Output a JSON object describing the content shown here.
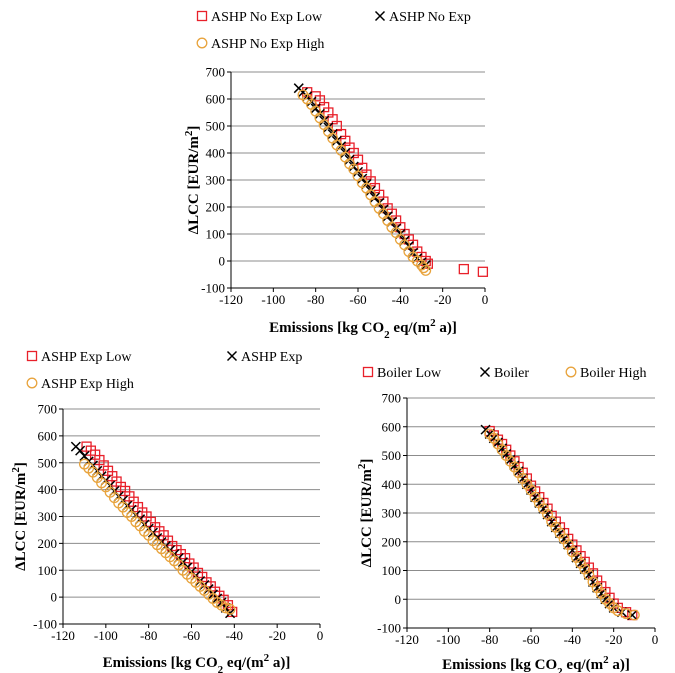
{
  "chart_data": [
    {
      "type": "scatter",
      "xlim": [
        -120,
        0
      ],
      "ylim": [
        -100,
        700
      ],
      "x_ticks": [
        "-120",
        "-100",
        "-80",
        "-60",
        "-40",
        "-20",
        "0"
      ],
      "y_ticks": [
        "-100",
        "0",
        "100",
        "200",
        "300",
        "400",
        "500",
        "600",
        "700"
      ],
      "xlabel_parts": [
        "Emissions [kg CO",
        "2",
        " eq/(m",
        "2",
        " a)]"
      ],
      "ylabel_parts": [
        "ΔLCC [EUR/m",
        "2",
        "]"
      ],
      "grid": "horizontal",
      "legend_position": "top",
      "series": [
        {
          "name": "ASHP No Exp Low",
          "marker": "square",
          "color": "#e8202a",
          "x": [
            -84,
            -80,
            -78,
            -76,
            -74,
            -72,
            -70,
            -68,
            -66,
            -64,
            -62,
            -60,
            -58,
            -56,
            -54,
            -52,
            -50,
            -48,
            -46,
            -44,
            -42,
            -40,
            -38,
            -36,
            -34,
            -32,
            -30,
            -28,
            -27,
            -10,
            -1
          ],
          "y": [
            625,
            610,
            595,
            570,
            550,
            525,
            500,
            470,
            445,
            420,
            400,
            375,
            345,
            320,
            295,
            270,
            245,
            220,
            195,
            175,
            150,
            125,
            100,
            80,
            60,
            35,
            15,
            0,
            -10,
            -30,
            -40
          ]
        },
        {
          "name": "ASHP No Exp",
          "marker": "x",
          "color": "#000000",
          "x": [
            -88,
            -86,
            -84,
            -82,
            -80,
            -78,
            -76,
            -74,
            -72,
            -70,
            -68,
            -66,
            -64,
            -62,
            -60,
            -58,
            -56,
            -54,
            -52,
            -50,
            -48,
            -46,
            -44,
            -42,
            -40,
            -38,
            -36,
            -34,
            -32,
            -30,
            -28
          ],
          "y": [
            640,
            625,
            610,
            590,
            565,
            545,
            520,
            495,
            470,
            445,
            425,
            400,
            375,
            350,
            330,
            305,
            285,
            260,
            235,
            215,
            190,
            165,
            145,
            120,
            100,
            75,
            55,
            30,
            10,
            -5,
            -15
          ]
        },
        {
          "name": "ASHP No Exp High",
          "marker": "circle",
          "color": "#e8a33c",
          "x": [
            -86,
            -84,
            -82,
            -80,
            -78,
            -76,
            -74,
            -72,
            -70,
            -68,
            -66,
            -64,
            -62,
            -60,
            -58,
            -56,
            -54,
            -52,
            -50,
            -48,
            -46,
            -44,
            -42,
            -40,
            -38,
            -36,
            -34,
            -32,
            -30,
            -29,
            -28
          ],
          "y": [
            615,
            600,
            580,
            555,
            530,
            505,
            480,
            455,
            430,
            410,
            385,
            360,
            340,
            315,
            290,
            270,
            245,
            220,
            195,
            175,
            150,
            125,
            105,
            80,
            60,
            35,
            15,
            0,
            -15,
            -25,
            -35
          ]
        }
      ]
    },
    {
      "type": "scatter",
      "xlim": [
        -120,
        0
      ],
      "ylim": [
        -100,
        700
      ],
      "x_ticks": [
        "-120",
        "-100",
        "-80",
        "-60",
        "-40",
        "-20",
        "0"
      ],
      "y_ticks": [
        "-100",
        "0",
        "100",
        "200",
        "300",
        "400",
        "500",
        "600",
        "700"
      ],
      "xlabel_parts": [
        "Emissions [kg CO",
        "2",
        " eq/(m",
        "2",
        " a)]"
      ],
      "ylabel_parts": [
        "ΔLCC [EUR/m",
        "2",
        "]"
      ],
      "grid": "horizontal",
      "legend_position": "top",
      "series": [
        {
          "name": "ASHP Exp Low",
          "marker": "square",
          "color": "#e8202a",
          "x": [
            -109,
            -107,
            -105,
            -103,
            -101,
            -99,
            -97,
            -95,
            -93,
            -91,
            -89,
            -87,
            -85,
            -83,
            -81,
            -79,
            -77,
            -75,
            -73,
            -71,
            -69,
            -67,
            -65,
            -63,
            -61,
            -59,
            -57,
            -55,
            -53,
            -51,
            -49,
            -47,
            -45,
            -43,
            -41
          ],
          "y": [
            560,
            545,
            530,
            510,
            490,
            470,
            450,
            430,
            410,
            395,
            375,
            355,
            335,
            315,
            300,
            280,
            260,
            245,
            230,
            210,
            190,
            175,
            160,
            145,
            125,
            110,
            90,
            75,
            55,
            40,
            20,
            5,
            -10,
            -30,
            -55
          ]
        },
        {
          "name": "ASHP Exp",
          "marker": "x",
          "color": "#000000",
          "x": [
            -114,
            -112,
            -110,
            -108,
            -106,
            -104,
            -102,
            -100,
            -98,
            -96,
            -94,
            -92,
            -90,
            -88,
            -86,
            -84,
            -82,
            -80,
            -78,
            -76,
            -74,
            -72,
            -70,
            -68,
            -66,
            -64,
            -62,
            -60,
            -58,
            -56,
            -54,
            -52,
            -50,
            -48,
            -46,
            -44,
            -42
          ],
          "y": [
            560,
            545,
            525,
            505,
            490,
            470,
            450,
            435,
            415,
            395,
            375,
            360,
            340,
            325,
            305,
            290,
            270,
            255,
            240,
            220,
            205,
            190,
            175,
            160,
            145,
            130,
            110,
            95,
            80,
            60,
            45,
            30,
            10,
            -5,
            -20,
            -40,
            -60
          ]
        },
        {
          "name": "ASHP Exp High",
          "marker": "circle",
          "color": "#e8a33c",
          "x": [
            -110,
            -108,
            -106,
            -104,
            -102,
            -100,
            -98,
            -96,
            -94,
            -92,
            -90,
            -88,
            -86,
            -84,
            -82,
            -80,
            -78,
            -76,
            -74,
            -72,
            -70,
            -68,
            -66,
            -64,
            -62,
            -60,
            -58,
            -56,
            -54,
            -52,
            -50,
            -48,
            -46,
            -44,
            -42
          ],
          "y": [
            495,
            480,
            465,
            445,
            425,
            410,
            390,
            370,
            350,
            335,
            315,
            300,
            280,
            265,
            245,
            230,
            210,
            195,
            180,
            165,
            150,
            135,
            120,
            100,
            85,
            70,
            55,
            40,
            25,
            10,
            -5,
            -20,
            -30,
            -40,
            -45
          ]
        }
      ]
    },
    {
      "type": "scatter",
      "xlim": [
        -120,
        0
      ],
      "ylim": [
        -100,
        700
      ],
      "x_ticks": [
        "-120",
        "-100",
        "-80",
        "-60",
        "-40",
        "-20",
        "0"
      ],
      "y_ticks": [
        "-100",
        "0",
        "100",
        "200",
        "300",
        "400",
        "500",
        "600",
        "700"
      ],
      "xlabel_parts": [
        "Emissions [kg CO",
        "2",
        " eq/(m",
        "2",
        " a)]"
      ],
      "ylabel_parts": [
        "ΔLCC [EUR/m",
        "2",
        "]"
      ],
      "grid": "horizontal",
      "legend_position": "top",
      "series": [
        {
          "name": "Boiler Low",
          "marker": "square",
          "color": "#e8202a",
          "x": [
            -80,
            -78,
            -76,
            -74,
            -72,
            -70,
            -68,
            -66,
            -64,
            -62,
            -60,
            -58,
            -56,
            -54,
            -52,
            -50,
            -48,
            -46,
            -44,
            -42,
            -40,
            -38,
            -36,
            -34,
            -32,
            -30,
            -28,
            -26,
            -24,
            -22,
            -20,
            -18,
            -14,
            -11
          ],
          "y": [
            585,
            570,
            555,
            540,
            520,
            500,
            480,
            460,
            440,
            420,
            395,
            375,
            355,
            335,
            315,
            290,
            270,
            250,
            230,
            210,
            190,
            170,
            150,
            130,
            110,
            90,
            65,
            45,
            25,
            5,
            -15,
            -30,
            -45,
            -55
          ]
        },
        {
          "name": "Boiler",
          "marker": "x",
          "color": "#000000",
          "x": [
            -82,
            -80,
            -78,
            -76,
            -74,
            -72,
            -70,
            -68,
            -66,
            -64,
            -62,
            -60,
            -58,
            -56,
            -54,
            -52,
            -50,
            -48,
            -46,
            -44,
            -42,
            -40,
            -38,
            -36,
            -34,
            -32,
            -30,
            -28,
            -26,
            -24,
            -22,
            -20,
            -16,
            -11
          ],
          "y": [
            590,
            575,
            560,
            545,
            525,
            505,
            485,
            465,
            445,
            420,
            400,
            380,
            355,
            335,
            315,
            295,
            270,
            250,
            230,
            210,
            190,
            170,
            145,
            125,
            105,
            85,
            60,
            40,
            20,
            0,
            -15,
            -30,
            -45,
            -55
          ]
        },
        {
          "name": "Boiler High",
          "marker": "circle",
          "color": "#e8a33c",
          "x": [
            -80,
            -78,
            -76,
            -74,
            -72,
            -70,
            -68,
            -66,
            -64,
            -62,
            -60,
            -58,
            -56,
            -54,
            -52,
            -50,
            -48,
            -46,
            -44,
            -42,
            -40,
            -38,
            -36,
            -34,
            -32,
            -30,
            -28,
            -26,
            -24,
            -22,
            -20,
            -18,
            -14,
            -10
          ],
          "y": [
            575,
            560,
            540,
            520,
            500,
            480,
            460,
            440,
            420,
            400,
            380,
            355,
            335,
            315,
            295,
            270,
            250,
            230,
            210,
            190,
            165,
            145,
            125,
            105,
            85,
            60,
            40,
            20,
            0,
            -15,
            -30,
            -40,
            -50,
            -55
          ]
        }
      ]
    }
  ]
}
